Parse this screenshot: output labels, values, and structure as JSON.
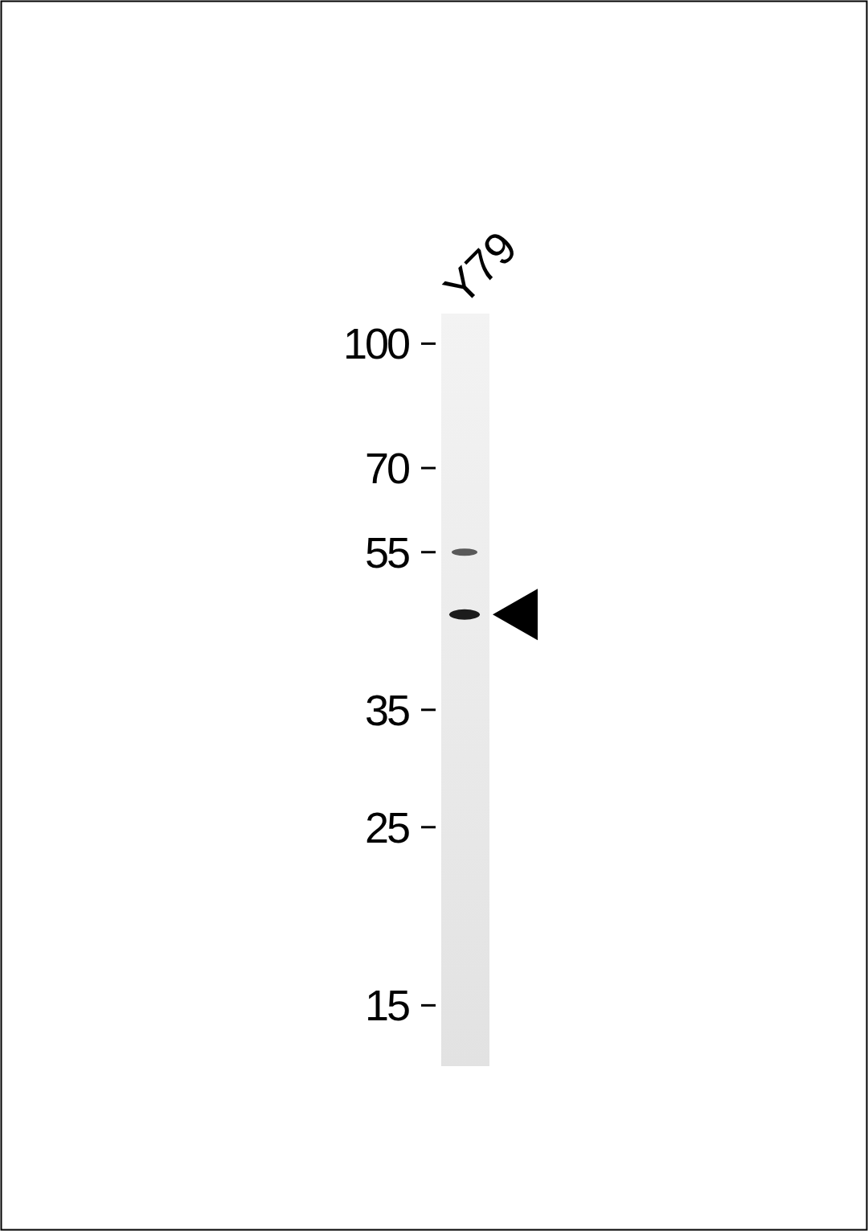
{
  "chart_data": {
    "type": "western_blot",
    "log": "y",
    "ylim": [
      12.6,
      109
    ],
    "yticks": [
      100,
      70,
      55,
      35,
      25,
      15
    ],
    "lanes": [
      {
        "label": "Y79",
        "bands": [
          55,
          46
        ]
      }
    ],
    "annotations": [
      {
        "type": "arrow",
        "value": 46
      }
    ]
  }
}
